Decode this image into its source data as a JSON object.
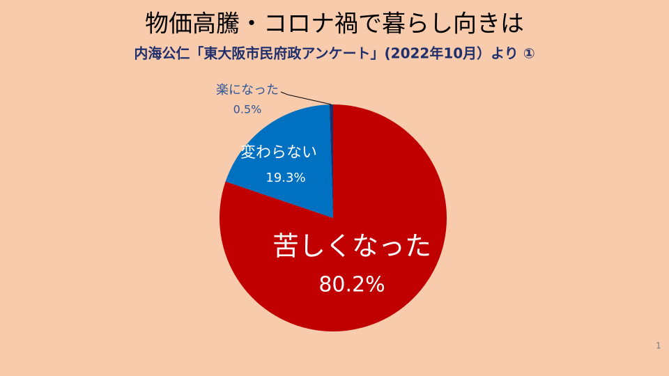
{
  "chart_data": {
    "type": "pie",
    "title": "物価高騰・コロナ禍で暮らし向きは",
    "subtitle": "内海公仁「東大阪市民府政アンケート」(2022年10月）より ①",
    "categories": [
      "苦しくなった",
      "変わらない",
      "楽になった"
    ],
    "values": [
      80.2,
      19.3,
      0.5
    ],
    "value_labels": [
      "80.2%",
      "19.3%",
      "0.5%"
    ],
    "colors": [
      "#c00000",
      "#0070c0",
      "#1f2f6b"
    ]
  },
  "slide_number": "1"
}
